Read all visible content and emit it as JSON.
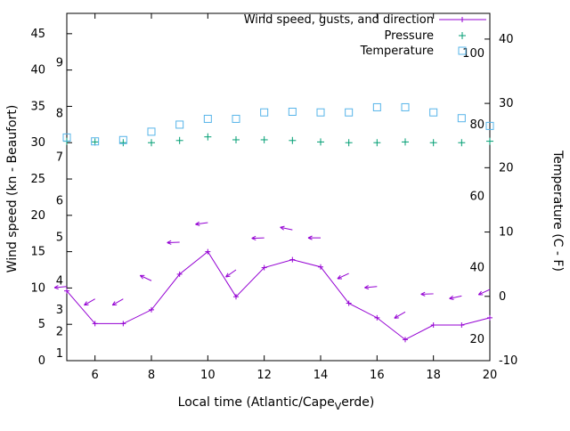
{
  "legend": {
    "position": "top-right-inside",
    "items": [
      {
        "label": "Wind speed, gusts, and direction",
        "series": "wind",
        "marker": "line-plus"
      },
      {
        "label": "Pressure",
        "series": "pressure",
        "marker": "plus"
      },
      {
        "label": "Temperature",
        "series": "temperature",
        "marker": "open-square"
      }
    ]
  },
  "colors": {
    "wind": "#9400d3",
    "pressure": "#009e73",
    "temperature": "#56b4e9",
    "axis": "#000000",
    "background": "#ffffff"
  },
  "chart_data": {
    "type": "line",
    "grid": false,
    "x": [
      5,
      6,
      7,
      8,
      9,
      10,
      11,
      12,
      13,
      14,
      15,
      16,
      17,
      18,
      19,
      20
    ],
    "series": [
      {
        "id": "wind",
        "name": "Wind speed, gusts, and direction",
        "color": "#9400d3",
        "marker": "line-plus",
        "axis": "left",
        "unit": "kn",
        "values": [
          9.6,
          5.1,
          5.1,
          7.0,
          11.9,
          15.0,
          8.8,
          12.8,
          13.9,
          12.9,
          7.9,
          5.9,
          2.9,
          4.9,
          4.9,
          5.9
        ]
      },
      {
        "id": "gusts",
        "name": "Wind gusts with direction arrows",
        "color": "#9400d3",
        "marker": "arrow",
        "axis": "left",
        "unit": "kn",
        "values": [
          10.2,
          8.5,
          8.5,
          11.0,
          16.3,
          19.0,
          12.5,
          16.9,
          18.0,
          16.9,
          12.0,
          10.2,
          6.7,
          9.2,
          8.9,
          9.8
        ],
        "arrow_angles_deg": [
          185,
          210,
          210,
          155,
          182,
          188,
          215,
          182,
          168,
          180,
          205,
          185,
          210,
          182,
          192,
          205
        ]
      },
      {
        "id": "pressure",
        "name": "Pressure",
        "color": "#009e73",
        "marker": "plus",
        "axis": "left",
        "unit": "inHg",
        "values": [
          30.2,
          30.1,
          30.0,
          30.0,
          30.3,
          30.8,
          30.4,
          30.4,
          30.3,
          30.1,
          30.0,
          30.0,
          30.1,
          30.0,
          30.0,
          30.2
        ]
      },
      {
        "id": "temperature",
        "name": "Temperature",
        "color": "#56b4e9",
        "marker": "open-square",
        "axis": "right",
        "unit": "C",
        "values": [
          24.7,
          24.1,
          24.3,
          25.6,
          26.7,
          27.6,
          27.6,
          28.6,
          28.7,
          28.6,
          28.6,
          29.4,
          29.4,
          28.6,
          27.7,
          26.5
        ]
      }
    ],
    "axes": {
      "x": {
        "label": "Local time (Atlantic/Cape_Verde)",
        "label_prefix": "Local time (Atlantic/Cape",
        "label_sub": "V",
        "label_suffix": "erde)",
        "min": 5,
        "max": 20,
        "ticks": [
          6,
          8,
          10,
          12,
          14,
          16,
          18,
          20
        ]
      },
      "y_left": {
        "label": "Wind speed (kn - Beaufort)",
        "min": 0,
        "max": 47.8,
        "ticks": [
          0,
          5,
          10,
          15,
          20,
          25,
          30,
          35,
          40,
          45
        ],
        "beaufort_scale_labels": [
          {
            "label": "1",
            "kn": 1
          },
          {
            "label": "2",
            "kn": 4
          },
          {
            "label": "3",
            "kn": 7
          },
          {
            "label": "4",
            "kn": 11
          },
          {
            "label": "5",
            "kn": 17
          },
          {
            "label": "6",
            "kn": 22
          },
          {
            "label": "7",
            "kn": 28
          },
          {
            "label": "8",
            "kn": 34
          },
          {
            "label": "9",
            "kn": 41
          }
        ]
      },
      "y_right": {
        "label": "Temperature (C - F)",
        "min": -10,
        "max": 44,
        "ticks": [
          -10,
          0,
          10,
          20,
          30,
          40
        ],
        "fahrenheit_scale_labels": [
          {
            "label": "20",
            "f": 20
          },
          {
            "label": "40",
            "f": 40
          },
          {
            "label": "60",
            "f": 60
          },
          {
            "label": "80",
            "f": 80
          },
          {
            "label": "100",
            "f": 100
          }
        ]
      }
    }
  }
}
